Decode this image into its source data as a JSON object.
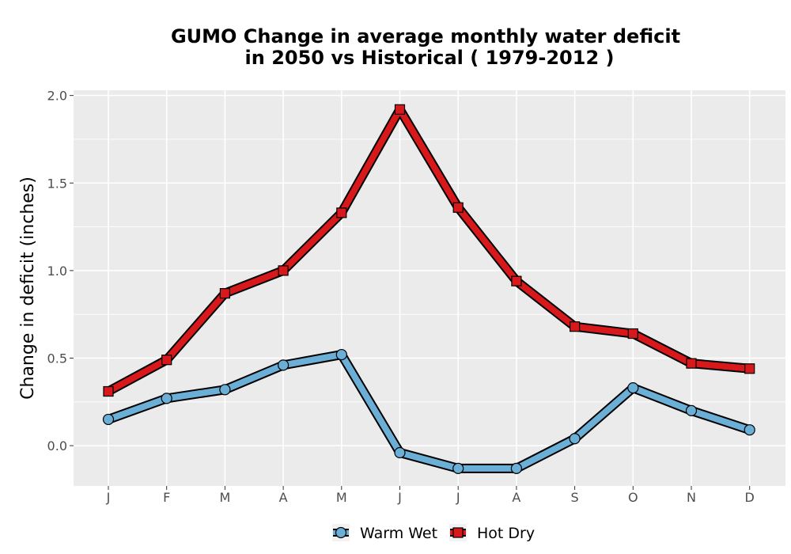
{
  "chart_data": {
    "type": "line",
    "title_line1": "GUMO  Change in average monthly water deficit",
    "title_line2": "in 2050 vs Historical ( 1979-2012 )",
    "xlabel": "",
    "ylabel": "Change in deficit (inches)",
    "categories": [
      "J",
      "F",
      "M",
      "A",
      "M",
      "J",
      "J",
      "A",
      "S",
      "O",
      "N",
      "D"
    ],
    "ylim": [
      -0.23,
      2.03
    ],
    "yticks": [
      "2.0",
      "1.5",
      "1.0",
      "0.5",
      "0.0"
    ],
    "ytick_values": [
      2.0,
      1.5,
      1.0,
      0.5,
      0.0
    ],
    "grid": true,
    "legend_position": "bottom",
    "series": [
      {
        "name": "Warm Wet",
        "color": "#6baed6",
        "marker": "circle",
        "values": [
          0.15,
          0.27,
          0.32,
          0.46,
          0.52,
          -0.04,
          -0.13,
          -0.13,
          0.04,
          0.33,
          0.2,
          0.09
        ]
      },
      {
        "name": "Hot Dry",
        "color": "#d7191c",
        "marker": "square",
        "values": [
          0.31,
          0.49,
          0.87,
          1.0,
          1.33,
          1.92,
          1.36,
          0.94,
          0.68,
          0.64,
          0.47,
          0.44
        ]
      }
    ]
  }
}
